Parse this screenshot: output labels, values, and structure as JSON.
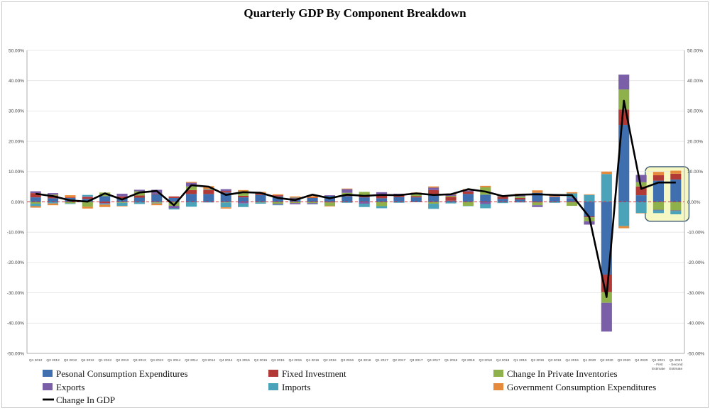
{
  "chart_data": {
    "type": "bar",
    "stacked": true,
    "title": "Quarterly GDP By Component Breakdown",
    "xlabel": "",
    "ylabel": "",
    "ylim": [
      -50,
      50
    ],
    "yticks": [
      -50,
      -40,
      -30,
      -20,
      -10,
      0,
      10,
      20,
      30,
      40,
      50
    ],
    "y_tick_labels": [
      "-50.00%",
      "-40.00%",
      "-30.00%",
      "-20.00%",
      "-10.00%",
      "0.00%",
      "10.00%",
      "20.00%",
      "30.00%",
      "40.00%",
      "50.00%"
    ],
    "categories": [
      "Q1 2012",
      "Q2 2012",
      "Q3 2012",
      "Q4 2012",
      "Q1 2013",
      "Q2 2013",
      "Q3 2013",
      "Q4 2013",
      "Q1 2014",
      "Q2 2014",
      "Q3 2014",
      "Q4 2014",
      "Q1 2015",
      "Q2 2015",
      "Q3 2015",
      "Q4 2015",
      "Q1 2016",
      "Q2 2016",
      "Q3 2016",
      "Q4 2016",
      "Q1 2017",
      "Q2 2017",
      "Q3 2017",
      "Q4 2017",
      "Q1 2018",
      "Q2 2018",
      "Q3 2018",
      "Q4 2018",
      "Q1 2019",
      "Q2 2019",
      "Q3 2019",
      "Q4 2019",
      "Q1 2020",
      "Q2 2020",
      "Q3 2020",
      "Q4 2020",
      "Q1 2021",
      "Q1 2021"
    ],
    "category_sublabels": [
      "",
      "",
      "",
      "",
      "",
      "",
      "",
      "",
      "",
      "",
      "",
      "",
      "",
      "",
      "",
      "",
      "",
      "",
      "",
      "",
      "",
      "",
      "",
      "",
      "",
      "",
      "",
      "",
      "",
      "",
      "",
      "",
      "",
      "",
      "",
      "",
      "- First Estimate",
      "- Second Estimate"
    ],
    "series": [
      {
        "name": "Pesonal Consumption Expenditures",
        "color": "#3f6fae",
        "values": [
          1.5,
          1.2,
          1.3,
          1.0,
          1.9,
          1.2,
          1.4,
          2.5,
          1.3,
          2.6,
          2.6,
          3.1,
          1.5,
          2.3,
          1.8,
          1.2,
          1.3,
          2.0,
          1.9,
          1.5,
          1.2,
          1.6,
          1.5,
          2.6,
          0.4,
          2.6,
          2.4,
          1.0,
          0.8,
          3.0,
          1.6,
          1.1,
          -4.8,
          -24.0,
          25.4,
          2.2,
          7.0,
          7.4
        ]
      },
      {
        "name": "Fixed Investment",
        "color": "#b23a36",
        "values": [
          1.4,
          0.9,
          0.2,
          0.6,
          -0.4,
          0.6,
          0.7,
          0.2,
          0.5,
          1.3,
          1.3,
          0.5,
          0.5,
          0.5,
          0.4,
          0.1,
          0.1,
          -0.2,
          0.5,
          0.5,
          1.2,
          0.6,
          0.4,
          1.3,
          1.3,
          0.8,
          -0.1,
          0.7,
          0.5,
          -0.2,
          0.1,
          -0.1,
          -0.3,
          -5.8,
          5.1,
          2.9,
          1.8,
          1.9
        ]
      },
      {
        "name": "Change In Private Inventories",
        "color": "#8fb14c",
        "values": [
          -0.6,
          0.3,
          -0.5,
          -1.6,
          1.2,
          -0.3,
          1.4,
          -0.3,
          -1.3,
          1.2,
          0.2,
          -0.2,
          1.5,
          -0.2,
          -0.6,
          -0.4,
          -0.4,
          -1.1,
          0.6,
          1.3,
          -1.4,
          0.1,
          0.8,
          -0.6,
          0.3,
          -1.3,
          2.4,
          0.1,
          0.5,
          -0.9,
          -0.1,
          -1.2,
          -1.3,
          -3.5,
          6.6,
          1.4,
          -2.6,
          -2.8
        ]
      },
      {
        "name": "Exports",
        "color": "#7a5ea8",
        "values": [
          0.6,
          0.5,
          0.0,
          0.2,
          -0.2,
          0.9,
          0.5,
          1.3,
          -0.8,
          1.2,
          0.2,
          0.6,
          -0.5,
          0.1,
          -0.3,
          -0.4,
          -0.3,
          0.2,
          1.2,
          -0.6,
          0.8,
          0.4,
          0.3,
          0.8,
          0.4,
          0.4,
          -0.6,
          0.2,
          0.4,
          -0.6,
          0.1,
          0.3,
          -1.1,
          -9.5,
          4.9,
          2.4,
          -0.2,
          -0.2
        ]
      },
      {
        "name": "Imports",
        "color": "#4aa3b8",
        "values": [
          -0.8,
          -0.5,
          -0.2,
          0.5,
          -0.3,
          -1.0,
          -0.7,
          -0.2,
          -0.4,
          -1.6,
          -0.2,
          -1.6,
          -1.2,
          -0.4,
          -0.2,
          0.1,
          -0.1,
          0.0,
          -0.3,
          -1.1,
          -0.7,
          -0.3,
          -0.1,
          -1.7,
          -0.5,
          -0.1,
          -1.4,
          -0.4,
          -0.2,
          0.0,
          -0.2,
          1.4,
          2.3,
          9.2,
          -8.0,
          -3.7,
          -0.9,
          -1.1
        ]
      },
      {
        "name": "Government Consumption Expenditures",
        "color": "#e58a3c",
        "values": [
          -0.5,
          -0.6,
          0.7,
          -0.6,
          -0.8,
          -0.2,
          0.0,
          -0.6,
          0.0,
          0.3,
          0.9,
          -0.4,
          0.4,
          0.4,
          0.3,
          0.4,
          0.5,
          -0.2,
          0.2,
          0.0,
          0.0,
          0.0,
          0.1,
          0.4,
          0.3,
          0.4,
          0.5,
          0.1,
          0.5,
          0.8,
          0.3,
          0.4,
          0.2,
          0.8,
          -0.7,
          -0.1,
          1.1,
          1.0
        ]
      }
    ],
    "lines": [
      {
        "name": "Change In GDP",
        "color": "#000000",
        "values": [
          2.7,
          1.9,
          0.5,
          0.1,
          2.8,
          0.8,
          3.1,
          3.6,
          -1.1,
          5.5,
          5.0,
          2.3,
          3.2,
          3.0,
          1.3,
          0.6,
          2.4,
          1.2,
          2.4,
          2.0,
          2.3,
          2.2,
          2.8,
          2.3,
          2.5,
          4.2,
          3.4,
          1.9,
          2.4,
          2.5,
          2.3,
          2.2,
          -5.0,
          -31.4,
          33.4,
          4.3,
          6.4,
          6.4
        ]
      }
    ],
    "zero_line": {
      "style": "dashed",
      "color": "#d9323a"
    },
    "highlight": {
      "categories": [
        36,
        37
      ],
      "fill": "#f6f8c4",
      "stroke": "#3c5a75"
    },
    "legend": {
      "position": "bottom"
    }
  }
}
